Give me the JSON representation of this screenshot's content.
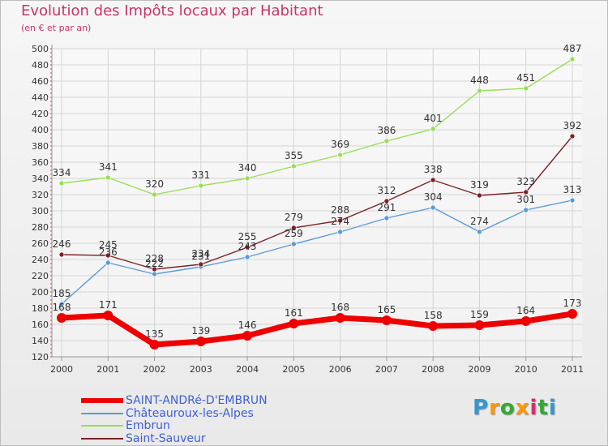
{
  "title": "Evolution des Impôts locaux par Habitant",
  "subtitle": "(en € et par an)",
  "logo": {
    "text": "Proxiti",
    "colors": [
      "#3399cc",
      "#ff9900",
      "#33aa33",
      "#ff9900",
      "#cc3366",
      "#33aa33",
      "#3399cc"
    ]
  },
  "chart_data": {
    "type": "line",
    "title": "Evolution des Impôts locaux par Habitant",
    "subtitle": "(en € et par an)",
    "x": [
      "2000",
      "2001",
      "2002",
      "2003",
      "2004",
      "2005",
      "2006",
      "2007",
      "2008",
      "2009",
      "2010",
      "2011"
    ],
    "ylim": [
      120,
      500
    ],
    "yticks": [
      120,
      140,
      160,
      180,
      200,
      220,
      240,
      260,
      280,
      300,
      320,
      340,
      360,
      380,
      400,
      420,
      440,
      460,
      480,
      500
    ],
    "grid": true,
    "legend_position": "bottom-left",
    "series": [
      {
        "name": "SAINT-ANDRé-D'EMBRUN",
        "color": "#ee0000",
        "values": [
          168,
          171,
          135,
          139,
          146,
          161,
          168,
          165,
          158,
          159,
          164,
          173
        ]
      },
      {
        "name": "Châteauroux-les-Alpes",
        "color": "#5b9bd5",
        "values": [
          185,
          236,
          222,
          231,
          243,
          259,
          274,
          291,
          304,
          274,
          301,
          313
        ]
      },
      {
        "name": "Embrun",
        "color": "#99dd55",
        "values": [
          334,
          341,
          320,
          331,
          340,
          355,
          369,
          386,
          401,
          448,
          451,
          487
        ]
      },
      {
        "name": "Saint-Sauveur",
        "color": "#7b2226",
        "values": [
          246,
          245,
          228,
          234,
          255,
          279,
          288,
          312,
          338,
          319,
          323,
          392
        ]
      }
    ]
  }
}
